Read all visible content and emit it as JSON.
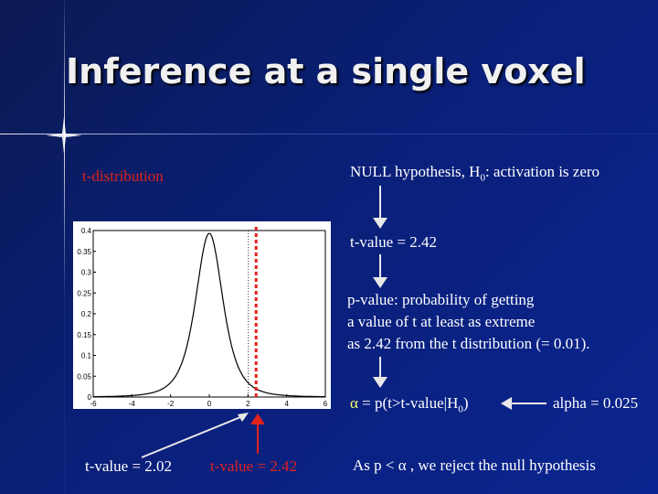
{
  "slide": {
    "title": "Inference at a single voxel",
    "left_label": "t-distribution",
    "null_hypothesis_prefix": "NULL hypothesis, H",
    "null_hypothesis_sub": "0",
    "null_hypothesis_suffix": ": activation is zero",
    "t_value_text": "t-value = 2.42",
    "p_value_lines": [
      "p-value: probability of getting",
      "a value of t at least as extreme",
      "as 2.42 from the t distribution (= 0.01)."
    ],
    "alpha_symbol": "α",
    "alpha_eq_prefix": " = p(t>t-value|H",
    "alpha_eq_sub": "0",
    "alpha_eq_suffix": ")",
    "alpha_value": "alpha = 0.025",
    "bottom_left_label": "t-value = 2.02",
    "bottom_mid_label": "t-value = 2.42",
    "conclusion": "As p < α , we reject the null hypothesis"
  },
  "colors": {
    "background": "#0a1f78",
    "red": "#e0231c",
    "yellow": "#ffff66"
  },
  "plot": {
    "y_ticks": [
      "0",
      "0.05",
      "0.1",
      "0.15",
      "0.2",
      "0.25",
      "0.3",
      "0.35",
      "0.4"
    ],
    "x_ticks": [
      "-6",
      "-4",
      "-2",
      "0",
      "2",
      "4",
      "6"
    ]
  }
}
